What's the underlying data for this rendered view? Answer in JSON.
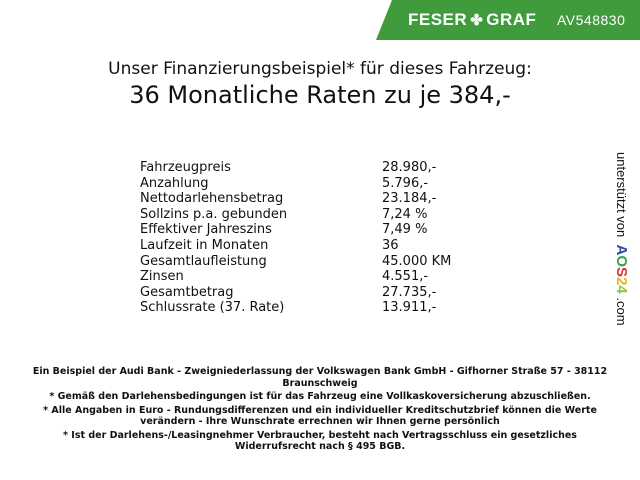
{
  "header": {
    "brand": "FESER",
    "brand2": "GRAF",
    "vehicle_id": "AV548830",
    "brand_color": "#3f9b3c",
    "logo_icon": "clover-icon"
  },
  "title": {
    "line1": "Unser Finanzierungsbeispiel* für dieses Fahrzeug:",
    "line2": "36 Monatliche Raten zu je 384,-"
  },
  "rows": [
    {
      "label": "Fahrzeugpreis",
      "value": "28.980,-"
    },
    {
      "label": "Anzahlung",
      "value": "5.796,-"
    },
    {
      "label": "Nettodarlehensbetrag",
      "value": "23.184,-"
    },
    {
      "label": "Sollzins p.a. gebunden",
      "value": "7,24 %"
    },
    {
      "label": "Effektiver Jahreszins",
      "value": "7,49 %"
    },
    {
      "label": "Laufzeit in Monaten",
      "value": "36"
    },
    {
      "label": "Gesamtlaufleistung",
      "value": "45.000 KM"
    },
    {
      "label": "Zinsen",
      "value": "4.551,-"
    },
    {
      "label": "Gesamtbetrag",
      "value": "27.735,-"
    },
    {
      "label": "Schlussrate (37. Rate)",
      "value": "13.911,-"
    }
  ],
  "side": {
    "text": "unterstützt von",
    "logo": [
      "A",
      "O",
      "S",
      "2",
      "4"
    ],
    "logo_colors": [
      "#2b4ea2",
      "#3aa047",
      "#d9342b",
      "#e8b520",
      "#8cc63f"
    ],
    "domain": ".com"
  },
  "footer": [
    "Ein Beispiel der Audi Bank - Zweigniederlassung der Volkswagen Bank GmbH - Gifhorner Straße 57 - 38112 Braunschweig",
    "* Gemäß den Darlehensbedingungen ist für das Fahrzeug eine Vollkaskoversicherung abzuschließen.",
    "* Alle Angaben in Euro - Rundungsdifferenzen und ein individueller Kreditschutzbrief können die Werte verändern - Ihre Wunschrate errechnen wir Ihnen gerne persönlich",
    "* Ist der Darlehens-/Leasingnehmer Verbraucher, besteht nach Vertragsschluss ein gesetzliches Widerrufsrecht nach § 495 BGB."
  ]
}
